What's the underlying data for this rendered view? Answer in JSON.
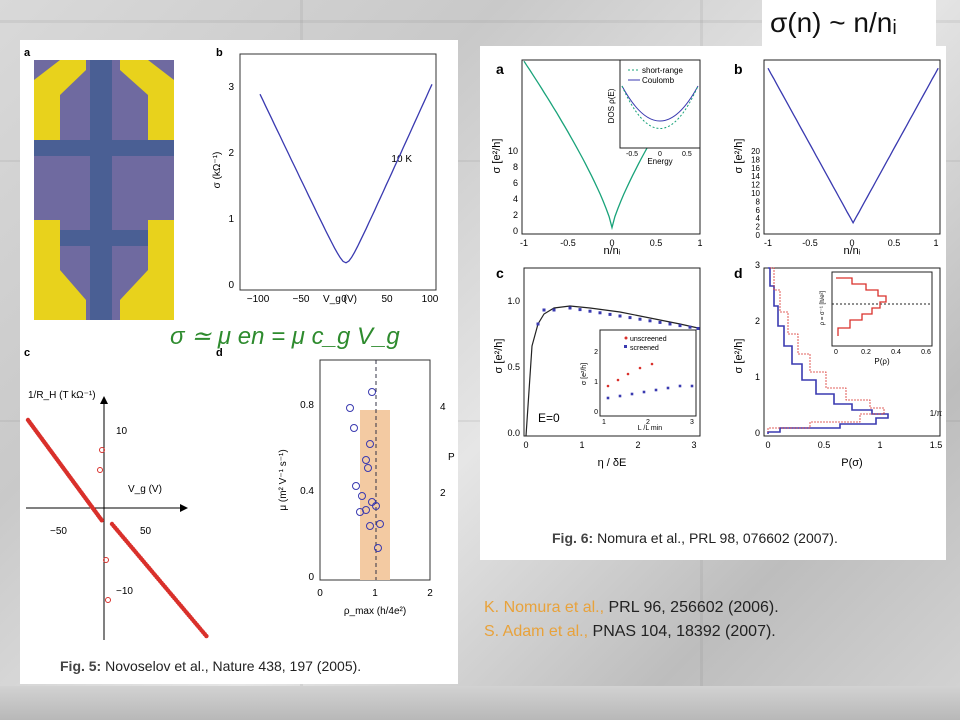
{
  "header_formula": "σ(n) ~ n/nᵢ",
  "fig5": {
    "caption_label": "Fig. 5:",
    "caption_text": "Novoselov et al., Nature 438, 197 (2005).",
    "panel_a": {
      "label": "a"
    },
    "panel_b": {
      "label": "b",
      "ylabel": "σ (kΩ⁻¹)",
      "xlabel": "V_g (V)",
      "annotation": "10 K",
      "xticks": [
        "−100",
        "−50",
        "0",
        "50",
        "100"
      ],
      "yticks": [
        "0",
        "1",
        "2",
        "3"
      ]
    },
    "formula": "σ ≃ μ en = μ c_g V_g",
    "panel_c": {
      "label": "c",
      "ylabel": "1/R_H (T kΩ⁻¹)",
      "xlabel": "V_g (V)",
      "tick_labels": [
        "10",
        "−10",
        "−50",
        "50"
      ]
    },
    "panel_d": {
      "label": "d",
      "ylabel": "μ (m² V⁻¹ s⁻¹)",
      "xlabel": "ρ_max (h/4e²)",
      "right_label": "P",
      "xticks": [
        "0",
        "1",
        "2"
      ],
      "yticks": [
        "0",
        "0.4",
        "0.8"
      ],
      "right_ticks": [
        "2",
        "4"
      ]
    }
  },
  "fig6": {
    "caption_label": "Fig. 6:",
    "caption_text": "Nomura et al., PRL 98, 076602 (2007).",
    "panel_a": {
      "label": "a",
      "ylabel": "σ [e²/h]",
      "xlabel": "n/nᵢ",
      "xticks": [
        "-1",
        "-0.5",
        "0",
        "0.5",
        "1"
      ],
      "yticks": [
        "0",
        "2",
        "4",
        "6",
        "8",
        "10"
      ],
      "inset": {
        "legend": [
          "short-range",
          "Coulomb"
        ],
        "ylabel": "DOS ρ(E)",
        "xlabel": "Energy",
        "xticks": [
          "-0.5",
          "0",
          "0.5"
        ]
      }
    },
    "panel_b": {
      "label": "b",
      "ylabel": "σ [e²/h]",
      "xlabel": "n/nᵢ",
      "xticks": [
        "-1",
        "-0.5",
        "0",
        "0.5",
        "1"
      ],
      "yticks": [
        "0",
        "2",
        "4",
        "6",
        "8",
        "10",
        "12",
        "14",
        "16",
        "18",
        "20"
      ]
    },
    "panel_c": {
      "label": "c",
      "ylabel": "σ [e²/h]",
      "xlabel": "η / δE",
      "annotation": "E=0",
      "xticks": [
        "0",
        "1",
        "2",
        "3"
      ],
      "yticks": [
        "0.0",
        "0.5",
        "1.0"
      ],
      "inset": {
        "legend": [
          "unscreened",
          "screened"
        ],
        "ylabel": "σ [e²/h]",
        "xlabel": "L /L min",
        "yticks": [
          "0",
          "1",
          "2"
        ],
        "xticks": [
          "1",
          "2",
          "3"
        ]
      }
    },
    "panel_d": {
      "label": "d",
      "ylabel": "σ [e²/h]",
      "xlabel": "P(σ)",
      "right_label": "1/π",
      "xticks": [
        "0",
        "0.5",
        "1",
        "1.5"
      ],
      "yticks": [
        "0",
        "1",
        "2",
        "3"
      ],
      "inset": {
        "ylabel": "ρ = σ⁻¹ [h/e²]",
        "xlabel": "P(ρ)",
        "xticks": [
          "0",
          "0.2",
          "0.4",
          "0.6"
        ]
      }
    }
  },
  "references": [
    {
      "authors": "K. Nomura et al.,",
      "journal": "PRL 96, 256602 (2006)."
    },
    {
      "authors": "S. Adam et al.,",
      "journal": "PNAS 104, 18392 (2007)."
    }
  ],
  "colors": {
    "coulomb_blue": "#3a3ab0",
    "short_range_green": "#1aa37a",
    "red": "#d9302b",
    "orange_formula": "#e8a23b",
    "formula_green": "#2e8b2e"
  }
}
